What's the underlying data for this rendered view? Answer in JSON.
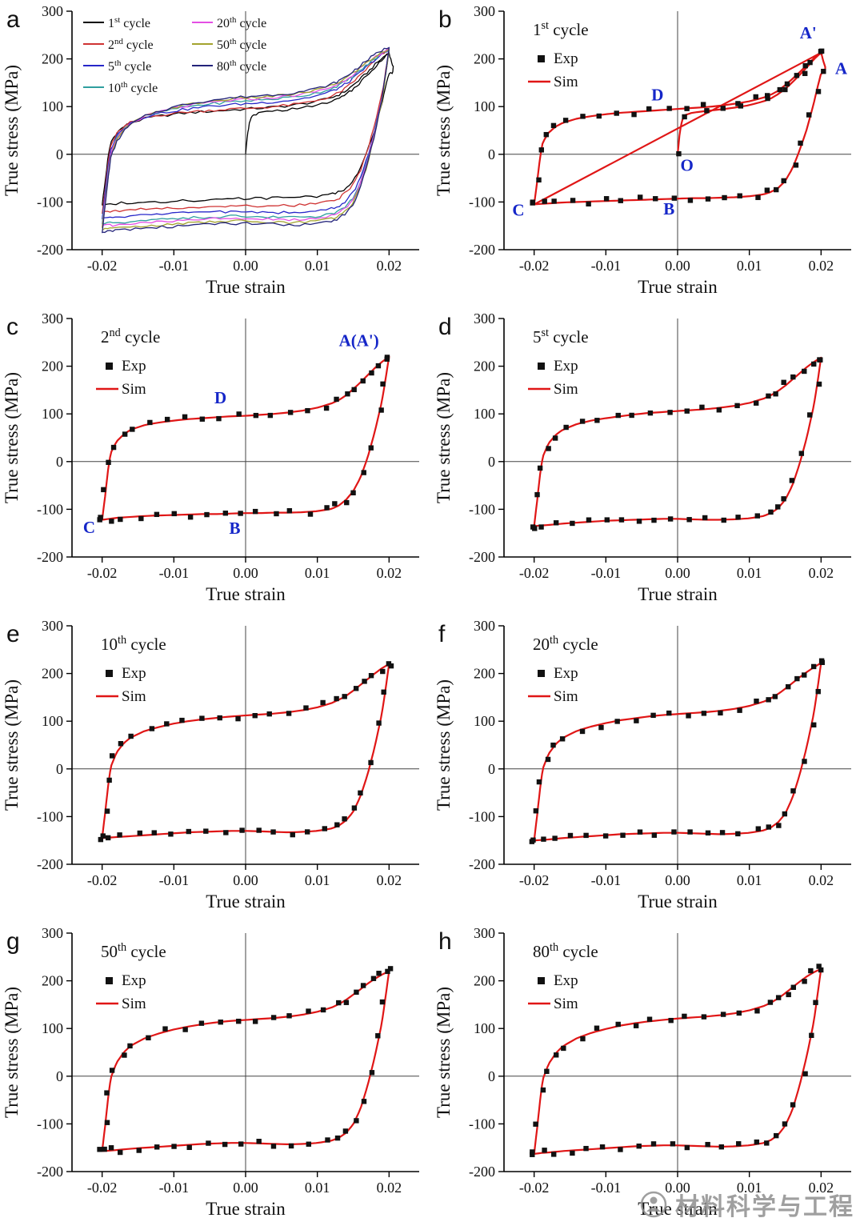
{
  "figure": {
    "watermark": {
      "text": "材料科学与工程",
      "color": "#8f8f8f"
    },
    "axis": {
      "xlabel": "True strain",
      "ylabel": "True stress (MPa)",
      "xticks": [
        {
          "label": "-0.02",
          "value": -0.02
        },
        {
          "label": "-0.01",
          "value": -0.01
        },
        {
          "label": "0.00",
          "value": 0.0
        },
        {
          "label": "0.01",
          "value": 0.01
        },
        {
          "label": "0.02",
          "value": 0.02
        }
      ],
      "yticks": [
        {
          "label": "-200",
          "value": -200
        },
        {
          "label": "-100",
          "value": -100
        },
        {
          "label": "0",
          "value": 0
        },
        {
          "label": "100",
          "value": 100
        },
        {
          "label": "200",
          "value": 200
        },
        {
          "label": "300",
          "value": 300
        }
      ],
      "xlim": [
        -0.0242,
        0.0242
      ],
      "ylim": [
        -200,
        300
      ]
    },
    "colors": {
      "sim": "#e01616",
      "exp": "#111111",
      "annotation": "#1526c8",
      "axis": "#000000",
      "zeroline": "#444444"
    }
  },
  "chart_data": {
    "type": "line",
    "xlabel": "True strain",
    "ylabel": "True stress (MPa)",
    "xlim": [
      -0.0242,
      0.0242
    ],
    "ylim": [
      -200,
      300
    ],
    "grid": false,
    "upper_strain_grid": [
      -0.02,
      -0.0196,
      -0.0192,
      -0.0188,
      -0.018,
      -0.017,
      -0.016,
      -0.014,
      -0.012,
      -0.01,
      -0.008,
      -0.006,
      -0.004,
      -0.002,
      0,
      0.002,
      0.004,
      0.006,
      0.008,
      0.01,
      0.012,
      0.013,
      0.014,
      0.015,
      0.016,
      0.017,
      0.018,
      0.019,
      0.02
    ],
    "lower_strain_grid": [
      0.02,
      0.0195,
      0.019,
      0.018,
      0.017,
      0.016,
      0.015,
      0.014,
      0.013,
      0.012,
      0.01,
      0.008,
      0.006,
      0.004,
      0.002,
      0,
      -0.002,
      -0.004,
      -0.006,
      -0.008,
      -0.01,
      -0.012,
      -0.014,
      -0.016,
      -0.018,
      -0.019,
      -0.02
    ],
    "cycles": {
      "c1": {
        "color": "#000000",
        "upper": [
          -105,
          -60,
          -10,
          25,
          45,
          58,
          66,
          75,
          80,
          84,
          87,
          89,
          91,
          93,
          95,
          97,
          99,
          102,
          106,
          111,
          119,
          125,
          133,
          145,
          158,
          172,
          187,
          201,
          213
        ],
        "lower": [
          170,
          140,
          108,
          52,
          8,
          -30,
          -56,
          -71,
          -79,
          -84,
          -88,
          -90,
          -91,
          -92,
          -92,
          -93,
          -94,
          -95,
          -96,
          -97,
          -98,
          -99,
          -100,
          -101,
          -103,
          -104,
          -105
        ],
        "initial_strain": [
          0,
          0.0003,
          0.0006,
          0.001,
          0.002,
          0.004,
          0.006,
          0.008,
          0.01,
          0.012,
          0.013,
          0.014,
          0.015,
          0.016,
          0.017,
          0.018,
          0.019,
          0.02
        ],
        "initial_stress": [
          0,
          45,
          70,
          82,
          87,
          91,
          94,
          98,
          103,
          111,
          117,
          126,
          137,
          151,
          166,
          182,
          199,
          213
        ],
        "bridge_strain": [
          0.0203,
          0.0206,
          0.0205
        ],
        "bridge_stress": [
          196,
          182,
          172
        ]
      },
      "c2": {
        "color": "#cf3333",
        "upper": [
          -122,
          -75,
          -20,
          18,
          42,
          57,
          67,
          77,
          82,
          86,
          89,
          91,
          93,
          95,
          96,
          98,
          100,
          103,
          107,
          113,
          122,
          129,
          139,
          152,
          166,
          181,
          196,
          209,
          220
        ],
        "lower": [
          220,
          172,
          126,
          62,
          8,
          -34,
          -62,
          -80,
          -92,
          -99,
          -104,
          -106,
          -107,
          -107,
          -108,
          -108,
          -109,
          -110,
          -110,
          -111,
          -112,
          -113,
          -114,
          -116,
          -118,
          -120,
          -122
        ]
      },
      "c5": {
        "color": "#2727c9",
        "upper": [
          -135,
          -85,
          -30,
          10,
          38,
          56,
          67,
          79,
          86,
          91,
          95,
          99,
          102,
          104,
          106,
          108,
          110,
          113,
          117,
          123,
          132,
          139,
          148,
          159,
          172,
          185,
          198,
          209,
          218
        ],
        "lower": [
          218,
          166,
          118,
          50,
          -5,
          -50,
          -80,
          -98,
          -108,
          -114,
          -119,
          -121,
          -122,
          -122,
          -121,
          -120,
          -120,
          -121,
          -122,
          -123,
          -124,
          -126,
          -128,
          -130,
          -133,
          -134,
          -135
        ]
      },
      "c10": {
        "color": "#2f9f9f",
        "upper": [
          -145,
          -95,
          -40,
          4,
          34,
          54,
          66,
          80,
          88,
          95,
          100,
          104,
          107,
          110,
          112,
          114,
          116,
          119,
          123,
          129,
          138,
          145,
          153,
          164,
          176,
          188,
          200,
          211,
          220
        ],
        "lower": [
          220,
          166,
          116,
          46,
          -12,
          -58,
          -90,
          -108,
          -119,
          -125,
          -130,
          -132,
          -133,
          -132,
          -131,
          -130,
          -130,
          -131,
          -132,
          -133,
          -135,
          -137,
          -139,
          -141,
          -143,
          -144,
          -145
        ]
      },
      "c20": {
        "color": "#e44fe4",
        "upper": [
          -150,
          -100,
          -45,
          0,
          31,
          52,
          65,
          80,
          89,
          96,
          102,
          106,
          110,
          113,
          115,
          117,
          119,
          122,
          126,
          132,
          141,
          148,
          157,
          168,
          180,
          192,
          203,
          213,
          222
        ],
        "lower": [
          222,
          168,
          117,
          46,
          -13,
          -61,
          -94,
          -112,
          -123,
          -129,
          -134,
          -136,
          -137,
          -136,
          -135,
          -134,
          -134,
          -135,
          -136,
          -137,
          -139,
          -141,
          -143,
          -145,
          -148,
          -149,
          -150
        ]
      },
      "c50": {
        "color": "#a3a32e",
        "upper": [
          -157,
          -107,
          -50,
          -4,
          28,
          50,
          64,
          80,
          90,
          98,
          104,
          109,
          113,
          116,
          118,
          120,
          122,
          125,
          129,
          135,
          144,
          151,
          160,
          171,
          182,
          194,
          204,
          213,
          220
        ],
        "lower": [
          220,
          165,
          112,
          40,
          -20,
          -69,
          -101,
          -119,
          -129,
          -135,
          -140,
          -142,
          -143,
          -142,
          -141,
          -140,
          -140,
          -141,
          -142,
          -144,
          -146,
          -148,
          -150,
          -152,
          -155,
          -156,
          -157
        ]
      },
      "c80": {
        "color": "#23237a",
        "upper": [
          -163,
          -112,
          -55,
          -7,
          25,
          48,
          63,
          80,
          91,
          99,
          106,
          111,
          115,
          118,
          121,
          123,
          125,
          128,
          132,
          138,
          147,
          154,
          163,
          174,
          186,
          198,
          209,
          218,
          225
        ],
        "lower": [
          225,
          170,
          115,
          42,
          -20,
          -71,
          -104,
          -123,
          -134,
          -140,
          -145,
          -147,
          -148,
          -147,
          -146,
          -145,
          -145,
          -146,
          -147,
          -149,
          -151,
          -153,
          -155,
          -157,
          -160,
          -161,
          -163
        ]
      }
    },
    "panels": [
      {
        "letter": "a",
        "kind": "overlay",
        "order": [
          "c1",
          "c2",
          "c5",
          "c10",
          "c20",
          "c50",
          "c80"
        ],
        "legend_word": "cycle",
        "legend_cols": [
          [
            {
              "num": "1",
              "sup": "st",
              "cycle": "c1"
            },
            {
              "num": "2",
              "sup": "nd",
              "cycle": "c2"
            },
            {
              "num": "5",
              "sup": "th",
              "cycle": "c5"
            },
            {
              "num": "10",
              "sup": "th",
              "cycle": "c10"
            }
          ],
          [
            {
              "num": "20",
              "sup": "th",
              "cycle": "c20"
            },
            {
              "num": "50",
              "sup": "th",
              "cycle": "c50"
            },
            {
              "num": "80",
              "sup": "th",
              "cycle": "c80"
            }
          ]
        ]
      },
      {
        "letter": "b",
        "kind": "single",
        "cycle": "c1",
        "title_num": "1",
        "title_sup": "st",
        "title_word": "cycle",
        "exp_label": "Exp",
        "sim_label": "Sim",
        "annotations": [
          {
            "text": "A'",
            "x": 0.0182,
            "y": 243
          },
          {
            "text": "A",
            "x": 0.0228,
            "y": 168
          },
          {
            "text": "D",
            "x": -0.0028,
            "y": 113
          },
          {
            "text": "O",
            "x": 0.0013,
            "y": -35
          },
          {
            "text": "B",
            "x": -0.0012,
            "y": -126
          },
          {
            "text": "C",
            "x": -0.0222,
            "y": -129
          }
        ]
      },
      {
        "letter": "c",
        "kind": "single",
        "cycle": "c2",
        "title_num": "2",
        "title_sup": "nd",
        "title_word": "cycle",
        "exp_label": "Exp",
        "sim_label": "Sim",
        "annotations": [
          {
            "text": "A(A')",
            "x": 0.0158,
            "y": 242
          },
          {
            "text": "D",
            "x": -0.0035,
            "y": 122
          },
          {
            "text": "C",
            "x": -0.0218,
            "y": -150
          },
          {
            "text": "B",
            "x": -0.0015,
            "y": -151
          }
        ]
      },
      {
        "letter": "d",
        "kind": "single",
        "cycle": "c5",
        "title_num": "5",
        "title_sup": "st",
        "title_word": "cycle",
        "exp_label": "Exp",
        "sim_label": "Sim",
        "annotations": []
      },
      {
        "letter": "e",
        "kind": "single",
        "cycle": "c10",
        "title_num": "10",
        "title_sup": "th",
        "title_word": "cycle",
        "exp_label": "Exp",
        "sim_label": "Sim",
        "annotations": []
      },
      {
        "letter": "f",
        "kind": "single",
        "cycle": "c20",
        "title_num": "20",
        "title_sup": "th",
        "title_word": "cycle",
        "exp_label": "Exp",
        "sim_label": "Sim",
        "annotations": []
      },
      {
        "letter": "g",
        "kind": "single",
        "cycle": "c50",
        "title_num": "50",
        "title_sup": "th",
        "title_word": "cycle",
        "exp_label": "Exp",
        "sim_label": "Sim",
        "annotations": []
      },
      {
        "letter": "h",
        "kind": "single",
        "cycle": "c80",
        "title_num": "80",
        "title_sup": "th",
        "title_word": "cycle",
        "exp_label": "Exp",
        "sim_label": "Sim",
        "annotations": []
      }
    ]
  }
}
